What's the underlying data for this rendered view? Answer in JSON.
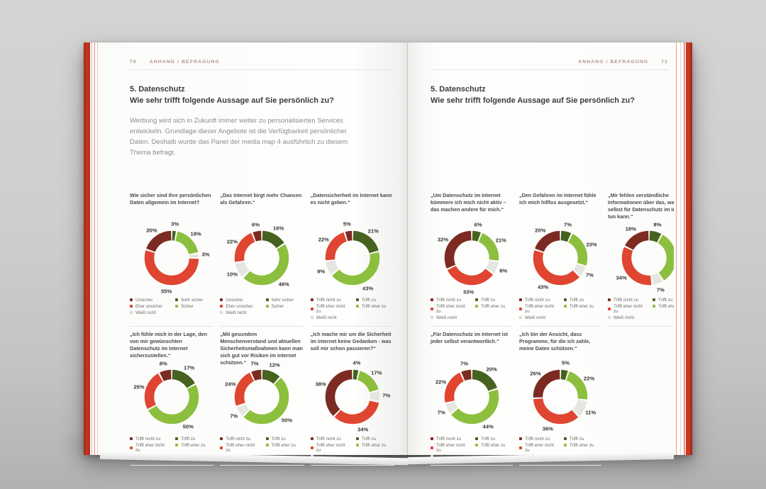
{
  "scene": {
    "background": "#cccccb",
    "floor_shadow": "rgba(0,0,0,0.45)"
  },
  "colors": {
    "dark_red": "#7c2b22",
    "red": "#df4530",
    "white": "#e6e6e1",
    "dark_green": "#46621f",
    "light_green": "#8dbf3e",
    "cover_red": "#c4351f",
    "header_text": "#b2908a"
  },
  "book": {
    "left_page": {
      "page_number": "70",
      "header": "ANHANG / BEFRAGUNG",
      "section_title": "5. Datenschutz",
      "section_subtitle": "Wie sehr trifft folgende Aussage auf Sie persönlich zu?",
      "intro": "Werbung wird sich in Zukunft immer weiter zu personalisierten Services entwickeln. Grundlage dieser Angebote ist die Verfügbarkeit persönlicher Daten. Deshalb wurde das Panel der media map 4 ausführlich zu diesem Thema befragt."
    },
    "right_page": {
      "page_number": "71",
      "header": "ANHANG / BEFRAGUNG",
      "section_title": "5. Datenschutz",
      "section_subtitle": "Wie sehr trifft folgende Aussage auf Sie persönlich zu?"
    }
  },
  "legends": {
    "security": {
      "col1": [
        {
          "color": "dark_red",
          "label": "Unsicher"
        },
        {
          "color": "red",
          "label": "Eher unsicher"
        },
        {
          "color": "white",
          "label": "Weiß nicht"
        }
      ],
      "col2": [
        {
          "color": "dark_green",
          "label": "Sehr sicher"
        },
        {
          "color": "light_green",
          "label": "Sicher"
        }
      ]
    },
    "agreement": {
      "col1": [
        {
          "color": "dark_red",
          "label": "Trifft nicht zu"
        },
        {
          "color": "red",
          "label": "Trifft eher nicht zu"
        },
        {
          "color": "white",
          "label": "Weiß nicht"
        }
      ],
      "col2": [
        {
          "color": "dark_green",
          "label": "Trifft zu"
        },
        {
          "color": "light_green",
          "label": "Trifft eher zu"
        }
      ]
    }
  },
  "chart_data": [
    {
      "type": "pie",
      "page": "left",
      "legend": "security",
      "question": "Wie sicher sind Ihre persönlichen Daten allgemein im Internet?",
      "segments": [
        {
          "label": "Sehr sicher",
          "color": "dark_green",
          "value": 3
        },
        {
          "label": "Sicher",
          "color": "light_green",
          "value": 19
        },
        {
          "label": "Weiß nicht",
          "color": "white",
          "value": 3
        },
        {
          "label": "Eher unsicher",
          "color": "red",
          "value": 55
        },
        {
          "label": "Unsicher",
          "color": "dark_red",
          "value": 20
        }
      ]
    },
    {
      "type": "pie",
      "page": "left",
      "legend": "security",
      "question": "„Das Internet birgt mehr Chancen als Gefahren.“",
      "segments": [
        {
          "label": "Sehr sicher",
          "color": "dark_green",
          "value": 16
        },
        {
          "label": "Sicher",
          "color": "light_green",
          "value": 46
        },
        {
          "label": "Weiß nicht",
          "color": "white",
          "value": 10
        },
        {
          "label": "Eher unsicher",
          "color": "red",
          "value": 22
        },
        {
          "label": "Unsicher",
          "color": "dark_red",
          "value": 6
        }
      ]
    },
    {
      "type": "pie",
      "page": "left",
      "legend": "agreement",
      "question": "„Datensicherheit im Internet kann es nicht geben.“",
      "segments": [
        {
          "label": "Trifft zu",
          "color": "dark_green",
          "value": 21
        },
        {
          "label": "Trifft eher zu",
          "color": "light_green",
          "value": 43
        },
        {
          "label": "Weiß nicht",
          "color": "white",
          "value": 9
        },
        {
          "label": "Trifft eher nicht zu",
          "color": "red",
          "value": 22
        },
        {
          "label": "Trifft nicht zu",
          "color": "dark_red",
          "value": 5
        }
      ]
    },
    {
      "type": "pie",
      "page": "left",
      "legend": "agreement",
      "question": "„Ich fühle mich in der Lage, den von mir gewünschten Datenschutz im Internet sicherzustellen.“",
      "segments": [
        {
          "label": "Trifft zu",
          "color": "dark_green",
          "value": 17
        },
        {
          "label": "Trifft eher zu",
          "color": "light_green",
          "value": 50
        },
        {
          "label": "Weiß nicht",
          "color": "white",
          "value": 0
        },
        {
          "label": "Trifft eher nicht zu",
          "color": "red",
          "value": 25
        },
        {
          "label": "Trifft nicht zu",
          "color": "dark_red",
          "value": 8
        }
      ]
    },
    {
      "type": "pie",
      "page": "left",
      "legend": "agreement",
      "question": "„Mit gesundem Menschenverstand und aktuellen Sicherheitsmaßnahmen kann man sich gut vor Risiken im Internet schützen.“",
      "segments": [
        {
          "label": "Trifft zu",
          "color": "dark_green",
          "value": 12
        },
        {
          "label": "Trifft eher zu",
          "color": "light_green",
          "value": 50
        },
        {
          "label": "Weiß nicht",
          "color": "white",
          "value": 7
        },
        {
          "label": "Trifft eher nicht zu",
          "color": "red",
          "value": 24
        },
        {
          "label": "Trifft nicht zu",
          "color": "dark_red",
          "value": 7
        }
      ]
    },
    {
      "type": "pie",
      "page": "left",
      "legend": "agreement",
      "question": "„Ich mache mir um die Sicherheit im Internet keine Gedanken - was soll mir schon passieren?“",
      "segments": [
        {
          "label": "Trifft zu",
          "color": "dark_green",
          "value": 4
        },
        {
          "label": "Trifft eher zu",
          "color": "light_green",
          "value": 17
        },
        {
          "label": "Weiß nicht",
          "color": "white",
          "value": 7
        },
        {
          "label": "Trifft eher nicht zu",
          "color": "red",
          "value": 34
        },
        {
          "label": "Trifft nicht zu",
          "color": "dark_red",
          "value": 38
        }
      ]
    },
    {
      "type": "pie",
      "page": "right",
      "legend": "agreement",
      "question": "„Um Datenschutz im Internet kümmere ich mich nicht aktiv – das machen andere für mich.“",
      "segments": [
        {
          "label": "Trifft zu",
          "color": "dark_green",
          "value": 6
        },
        {
          "label": "Trifft eher zu",
          "color": "light_green",
          "value": 21
        },
        {
          "label": "Weiß nicht",
          "color": "white",
          "value": 8
        },
        {
          "label": "Trifft eher nicht zu",
          "color": "red",
          "value": 33
        },
        {
          "label": "Trifft nicht zu",
          "color": "dark_red",
          "value": 32
        }
      ]
    },
    {
      "type": "pie",
      "page": "right",
      "legend": "agreement",
      "question": "„Den Gefahren im Internet fühle ich mich hilflos ausgesetzt.“",
      "segments": [
        {
          "label": "Trifft zu",
          "color": "dark_green",
          "value": 7
        },
        {
          "label": "Trifft eher zu",
          "color": "light_green",
          "value": 23
        },
        {
          "label": "Weiß nicht",
          "color": "white",
          "value": 7
        },
        {
          "label": "Trifft eher nicht zu",
          "color": "red",
          "value": 43
        },
        {
          "label": "Trifft nicht zu",
          "color": "dark_red",
          "value": 20
        }
      ]
    },
    {
      "type": "pie",
      "page": "right",
      "legend": "agreement",
      "question": "„Mir fehlen verständliche Informationen über das, was ich selbst für Datenschutz im Internet tun kann.“",
      "segments": [
        {
          "label": "Trifft zu",
          "color": "dark_green",
          "value": 8
        },
        {
          "label": "Trifft eher zu",
          "color": "light_green",
          "value": 33
        },
        {
          "label": "Weiß nicht",
          "color": "white",
          "value": 7
        },
        {
          "label": "Trifft eher nicht zu",
          "color": "red",
          "value": 34
        },
        {
          "label": "Trifft nicht zu",
          "color": "dark_red",
          "value": 18
        }
      ]
    },
    {
      "type": "pie",
      "page": "right",
      "legend": "agreement",
      "question": "„Für Datenschutz im Internet ist jeder selbst verantwortlich.“",
      "segments": [
        {
          "label": "Trifft zu",
          "color": "dark_green",
          "value": 20
        },
        {
          "label": "Trifft eher zu",
          "color": "light_green",
          "value": 44
        },
        {
          "label": "Weiß nicht",
          "color": "white",
          "value": 7
        },
        {
          "label": "Trifft eher nicht zu",
          "color": "red",
          "value": 22
        },
        {
          "label": "Trifft nicht zu",
          "color": "dark_red",
          "value": 7
        }
      ]
    },
    {
      "type": "pie",
      "page": "right",
      "legend": "agreement",
      "question": "„Ich bin der Ansicht, dass Programme, für die ich zahle, meine Daten schützen.“",
      "segments": [
        {
          "label": "Trifft zu",
          "color": "dark_green",
          "value": 5
        },
        {
          "label": "Trifft eher zu",
          "color": "light_green",
          "value": 22
        },
        {
          "label": "Weiß nicht",
          "color": "white",
          "value": 11
        },
        {
          "label": "Trifft eher nicht zu",
          "color": "red",
          "value": 36
        },
        {
          "label": "Trifft nicht zu",
          "color": "dark_red",
          "value": 26
        }
      ]
    }
  ]
}
